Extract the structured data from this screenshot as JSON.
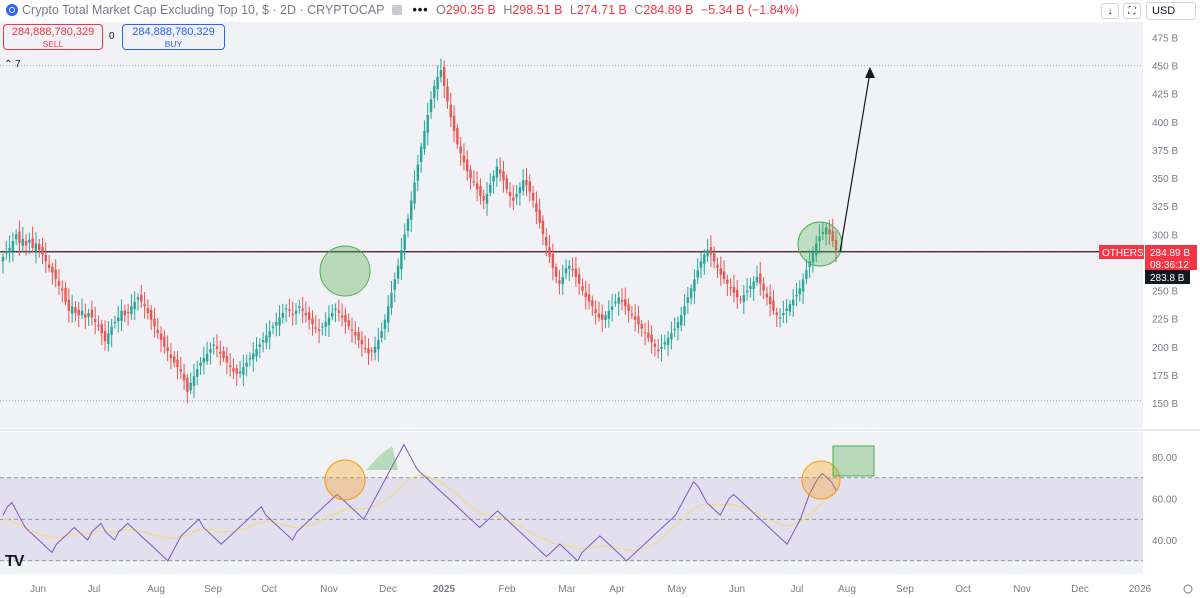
{
  "header": {
    "title": "Crypto Total Market Cap Excluding Top 10, $ · 2D · CRYPTOCAP",
    "menu_dots": "•••",
    "o_label": "O",
    "o_value": "290.35 B",
    "h_label": "H",
    "h_value": "298.51 B",
    "l_label": "L",
    "l_value": "274.71 B",
    "c_label": "C",
    "c_value": "284.89 B",
    "change": "−5.34 B (−1.84%)",
    "currency": "USD",
    "down_icon": "arrow-down-icon",
    "fullscreen_icon": "fullscreen-icon"
  },
  "order": {
    "sell_value": "284,888,780,329",
    "sell_label": "SELL",
    "spread": "0",
    "buy_value": "284,888,780,329",
    "buy_label": "BUY"
  },
  "indicators_count": "7",
  "logo_text": "TV",
  "colors": {
    "up": "#26a69a",
    "down": "#ef5350",
    "rsi": "#7e57c2",
    "rsi_ma": "#f7dc6f",
    "price_tag": "#f23645"
  },
  "chart_data": [
    {
      "type": "candlestick",
      "title": "",
      "symbol_label": "OTHERS",
      "last_price_label": "284.89 B",
      "countdown": "08:36:12",
      "reference_price_label": "283.8 B",
      "ylim": [
        140,
        480
      ],
      "y_ticks": [
        "475 B",
        "450 B",
        "425 B",
        "400 B",
        "375 B",
        "350 B",
        "325 B",
        "300 B",
        "275 B",
        "250 B",
        "225 B",
        "200 B",
        "175 B",
        "150 B"
      ],
      "y_tick_values": [
        475,
        450,
        425,
        400,
        375,
        350,
        325,
        300,
        275,
        250,
        225,
        200,
        175,
        150
      ],
      "horizontal_lines": [
        450,
        152,
        284.5
      ],
      "x_ticks": [
        "Jun",
        "Jul",
        "Aug",
        "Sep",
        "Oct",
        "Nov",
        "Dec",
        "2025",
        "Feb",
        "Mar",
        "Apr",
        "May",
        "Jun",
        "Jul",
        "Aug",
        "Sep",
        "Oct",
        "Nov",
        "Dec",
        "2026"
      ],
      "close_series": [
        280,
        285,
        288,
        294,
        300,
        292,
        296,
        290,
        295,
        288,
        292,
        286,
        282,
        276,
        270,
        266,
        260,
        254,
        250,
        240,
        232,
        236,
        230,
        228,
        232,
        226,
        230,
        226,
        222,
        218,
        212,
        205,
        212,
        218,
        222,
        226,
        232,
        228,
        230,
        236,
        240,
        244,
        240,
        236,
        230,
        224,
        218,
        212,
        206,
        200,
        196,
        190,
        186,
        182,
        178,
        170,
        160,
        168,
        174,
        180,
        186,
        190,
        194,
        198,
        202,
        198,
        194,
        190,
        186,
        182,
        178,
        176,
        178,
        182,
        186,
        190,
        194,
        198,
        202,
        206,
        210,
        214,
        218,
        222,
        226,
        230,
        234,
        232,
        228,
        232,
        236,
        232,
        228,
        224,
        220,
        216,
        214,
        218,
        222,
        226,
        230,
        234,
        230,
        226,
        222,
        218,
        214,
        210,
        206,
        202,
        198,
        194,
        196,
        200,
        206,
        214,
        224,
        236,
        248,
        260,
        272,
        286,
        300,
        314,
        330,
        346,
        362,
        378,
        392,
        406,
        420,
        432,
        440,
        446,
        432,
        418,
        404,
        392,
        380,
        372,
        364,
        356,
        350,
        346,
        340,
        334,
        330,
        336,
        344,
        352,
        360,
        354,
        348,
        340,
        334,
        330,
        336,
        342,
        348,
        344,
        338,
        330,
        320,
        310,
        300,
        290,
        280,
        270,
        262,
        256,
        262,
        270,
        272,
        268,
        262,
        256,
        250,
        244,
        240,
        236,
        230,
        226,
        224,
        228,
        232,
        236,
        240,
        244,
        240,
        236,
        232,
        228,
        224,
        220,
        216,
        212,
        208,
        204,
        200,
        196,
        200,
        204,
        208,
        212,
        216,
        222,
        228,
        236,
        244,
        252,
        260,
        268,
        276,
        282,
        286,
        282,
        276,
        270,
        264,
        260,
        256,
        252,
        248,
        244,
        242,
        246,
        250,
        254,
        258,
        262,
        256,
        250,
        244,
        238,
        232,
        228,
        226,
        230,
        234,
        238,
        242,
        246,
        252,
        260,
        268,
        276,
        284,
        292,
        298,
        302,
        306,
        300,
        294,
        286
      ]
    },
    {
      "type": "line",
      "title": "",
      "ylim": [
        24,
        92
      ],
      "y_ticks": [
        "80.00",
        "60.00",
        "40.00"
      ],
      "y_tick_values": [
        80,
        60,
        40
      ],
      "bands": [
        70,
        50,
        30
      ],
      "series": [
        {
          "values": [
            52,
            56,
            58,
            54,
            50,
            46,
            44,
            42,
            40,
            38,
            36,
            34,
            38,
            40,
            42,
            44,
            46,
            44,
            42,
            40,
            44,
            46,
            48,
            44,
            42,
            40,
            44,
            46,
            48,
            46,
            44,
            42,
            40,
            38,
            36,
            34,
            32,
            30,
            34,
            38,
            42,
            44,
            46,
            48,
            50,
            46,
            44,
            42,
            40,
            38,
            40,
            42,
            44,
            46,
            48,
            50,
            52,
            54,
            56,
            52,
            50,
            48,
            46,
            44,
            42,
            40,
            44,
            46,
            48,
            50,
            52,
            54,
            56,
            58,
            60,
            62,
            60,
            58,
            56,
            54,
            52,
            50,
            54,
            58,
            62,
            66,
            70,
            74,
            78,
            82,
            86,
            82,
            78,
            74,
            72,
            70,
            68,
            66,
            64,
            62,
            60,
            58,
            56,
            54,
            52,
            50,
            48,
            46,
            48,
            50,
            52,
            54,
            52,
            50,
            48,
            46,
            44,
            42,
            40,
            38,
            36,
            34,
            32,
            34,
            36,
            38,
            36,
            34,
            32,
            30,
            34,
            36,
            38,
            40,
            42,
            40,
            38,
            36,
            34,
            32,
            30,
            32,
            34,
            36,
            38,
            40,
            42,
            44,
            46,
            48,
            50,
            52,
            56,
            60,
            64,
            68,
            66,
            62,
            58,
            56,
            54,
            52,
            56,
            60,
            62,
            60,
            58,
            56,
            54,
            52,
            50,
            48,
            46,
            44,
            42,
            40,
            38,
            42,
            46,
            50,
            56,
            62,
            66,
            70,
            72,
            70,
            68,
            64
          ]
        },
        {
          "values": [
            50,
            50,
            49,
            48,
            47,
            46,
            45,
            44,
            43,
            42,
            42,
            41,
            41,
            41,
            42,
            42,
            43,
            43,
            43,
            43,
            43,
            44,
            44,
            44,
            44,
            44,
            44,
            45,
            45,
            45,
            45,
            44,
            44,
            43,
            42,
            42,
            41,
            41,
            41,
            41,
            42,
            42,
            43,
            44,
            45,
            45,
            45,
            45,
            44,
            44,
            44,
            44,
            44,
            45,
            45,
            46,
            47,
            48,
            48,
            49,
            49,
            48,
            48,
            47,
            47,
            46,
            46,
            46,
            47,
            47,
            48,
            49,
            50,
            51,
            52,
            53,
            54,
            55,
            55,
            55,
            55,
            55,
            55,
            56,
            57,
            58,
            59,
            61,
            63,
            65,
            67,
            69,
            70,
            71,
            71,
            71,
            70,
            69,
            68,
            67,
            65,
            64,
            62,
            60,
            58,
            56,
            55,
            53,
            52,
            52,
            52,
            51,
            51,
            50,
            49,
            48,
            47,
            46,
            44,
            43,
            42,
            41,
            40,
            39,
            38,
            38,
            38,
            37,
            37,
            36,
            36,
            36,
            36,
            37,
            37,
            37,
            37,
            37,
            36,
            36,
            35,
            35,
            35,
            36,
            36,
            37,
            38,
            39,
            41,
            43,
            45,
            47,
            49,
            51,
            53,
            55,
            56,
            57,
            57,
            57,
            57,
            57,
            57,
            57,
            57,
            56,
            56,
            55,
            54,
            53,
            52,
            51,
            50,
            49,
            48,
            47,
            47,
            47,
            48,
            49,
            50,
            52,
            54,
            56,
            58,
            60,
            62,
            63
          ]
        }
      ],
      "x_ticks": [
        "Jun",
        "Jul",
        "Aug",
        "Sep",
        "Oct",
        "Nov",
        "Dec",
        "2025",
        "Feb",
        "Mar",
        "Apr",
        "May",
        "Jun",
        "Jul",
        "Aug",
        "Sep",
        "Oct",
        "Nov",
        "Dec",
        "2026"
      ]
    }
  ]
}
